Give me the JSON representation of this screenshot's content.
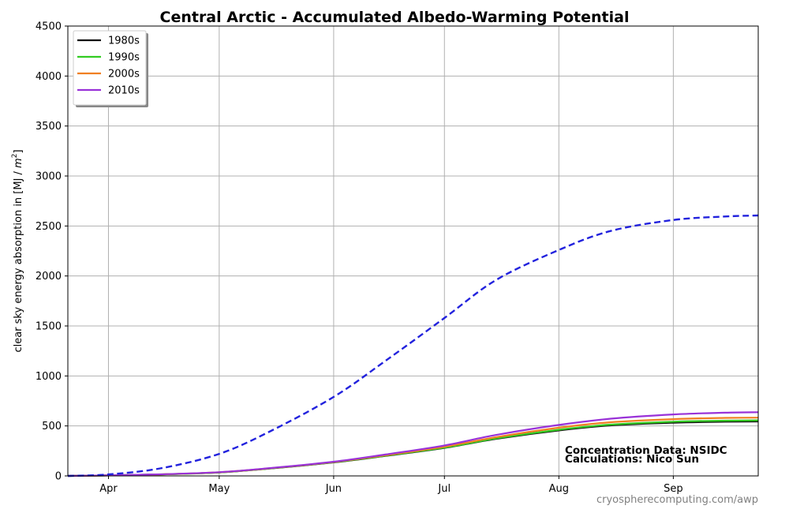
{
  "chart_data": {
    "type": "line",
    "title": "Central Arctic - Accumulated Albedo-Warming Potential",
    "ylabel_main": "clear sky energy absorption in  [MJ / ",
    "ylabel_unit": "m",
    "ylabel_exp": "2",
    "ylabel_end": "]",
    "ylim": [
      0,
      4500
    ],
    "yticks": [
      0,
      500,
      1000,
      1500,
      2000,
      2500,
      3000,
      3500,
      4000,
      4500
    ],
    "xlim": [
      "2023-03-21",
      "2023-09-24"
    ],
    "xticks": [
      {
        "date": "2023-04-01",
        "label": "Apr"
      },
      {
        "date": "2023-05-01",
        "label": "May"
      },
      {
        "date": "2023-06-01",
        "label": "Jun"
      },
      {
        "date": "2023-07-01",
        "label": "Jul"
      },
      {
        "date": "2023-08-01",
        "label": "Aug"
      },
      {
        "date": "2023-09-01",
        "label": "Sep"
      }
    ],
    "grid": true,
    "legend_position": "top-left",
    "series": [
      {
        "name": "1980s",
        "color": "#111111",
        "style": "solid",
        "x": [
          "2023-03-21",
          "2023-04-01",
          "2023-04-15",
          "2023-05-01",
          "2023-05-15",
          "2023-06-01",
          "2023-06-15",
          "2023-07-01",
          "2023-07-15",
          "2023-08-01",
          "2023-08-15",
          "2023-09-01",
          "2023-09-15",
          "2023-09-24"
        ],
        "y": [
          0,
          5,
          15,
          35,
          75,
          135,
          200,
          280,
          370,
          455,
          505,
          532,
          542,
          545
        ]
      },
      {
        "name": "1990s",
        "color": "#33cc22",
        "style": "solid",
        "x": [
          "2023-03-21",
          "2023-04-01",
          "2023-04-15",
          "2023-05-01",
          "2023-05-15",
          "2023-06-01",
          "2023-06-15",
          "2023-07-01",
          "2023-07-15",
          "2023-08-01",
          "2023-08-15",
          "2023-09-01",
          "2023-09-15",
          "2023-09-24"
        ],
        "y": [
          0,
          5,
          15,
          35,
          76,
          137,
          202,
          283,
          375,
          462,
          513,
          542,
          553,
          556
        ]
      },
      {
        "name": "2000s",
        "color": "#f07f22",
        "style": "solid",
        "x": [
          "2023-03-21",
          "2023-04-01",
          "2023-04-15",
          "2023-05-01",
          "2023-05-15",
          "2023-06-01",
          "2023-06-15",
          "2023-07-01",
          "2023-07-15",
          "2023-08-01",
          "2023-08-15",
          "2023-09-01",
          "2023-09-15",
          "2023-09-24"
        ],
        "y": [
          0,
          5,
          15,
          36,
          77,
          139,
          207,
          292,
          388,
          482,
          537,
          568,
          580,
          583
        ]
      },
      {
        "name": "2010s",
        "color": "#9932d8",
        "style": "solid",
        "x": [
          "2023-03-21",
          "2023-04-01",
          "2023-04-15",
          "2023-05-01",
          "2023-05-15",
          "2023-06-01",
          "2023-06-15",
          "2023-07-01",
          "2023-07-15",
          "2023-08-01",
          "2023-08-15",
          "2023-09-01",
          "2023-09-15",
          "2023-09-24"
        ],
        "y": [
          0,
          5,
          16,
          37,
          79,
          142,
          214,
          305,
          410,
          510,
          572,
          615,
          632,
          637
        ]
      },
      {
        "color": "#2222dd",
        "style": "dashed",
        "x": [
          "2023-03-21",
          "2023-04-01",
          "2023-04-15",
          "2023-05-01",
          "2023-05-15",
          "2023-06-01",
          "2023-06-15",
          "2023-07-01",
          "2023-07-15",
          "2023-08-01",
          "2023-08-15",
          "2023-09-01",
          "2023-09-15",
          "2023-09-24"
        ],
        "y": [
          0,
          15,
          75,
          220,
          450,
          790,
          1150,
          1580,
          1960,
          2260,
          2450,
          2560,
          2595,
          2605
        ]
      }
    ]
  },
  "annotations": {
    "line1": "Concentration Data: NSIDC",
    "line2": "Calculations: Nico Sun"
  },
  "credit": "cryospherecomputing.com/awp"
}
